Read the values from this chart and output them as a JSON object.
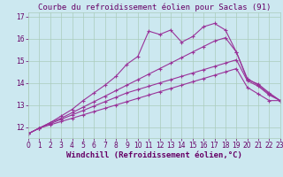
{
  "title": "Courbe du refroidissement éolien pour Saclas (91)",
  "xlabel": "Windchill (Refroidissement éolien,°C)",
  "bg_color": "#cce8f0",
  "grid_color": "#aaccbb",
  "line_color": "#993399",
  "xlim": [
    0,
    23
  ],
  "ylim": [
    11.5,
    17.2
  ],
  "xticks": [
    0,
    1,
    2,
    3,
    4,
    5,
    6,
    7,
    8,
    9,
    10,
    11,
    12,
    13,
    14,
    15,
    16,
    17,
    18,
    19,
    20,
    21,
    22,
    23
  ],
  "yticks": [
    12,
    13,
    14,
    15,
    16,
    17
  ],
  "line1_y": [
    11.7,
    11.95,
    12.2,
    12.5,
    12.8,
    13.2,
    13.55,
    13.9,
    14.3,
    14.85,
    15.2,
    16.35,
    16.2,
    16.4,
    15.85,
    16.1,
    16.55,
    16.7,
    16.4,
    15.4,
    14.15,
    13.95,
    13.55,
    13.2
  ],
  "line2_y": [
    11.7,
    11.95,
    12.2,
    12.4,
    12.65,
    12.9,
    13.15,
    13.4,
    13.65,
    13.9,
    14.15,
    14.4,
    14.65,
    14.9,
    15.15,
    15.4,
    15.65,
    15.9,
    16.05,
    15.4,
    14.2,
    13.9,
    13.5,
    13.2
  ],
  "line3_y": [
    11.7,
    11.95,
    12.15,
    12.35,
    12.55,
    12.75,
    12.95,
    13.15,
    13.35,
    13.55,
    13.7,
    13.85,
    14.0,
    14.15,
    14.3,
    14.45,
    14.6,
    14.75,
    14.9,
    15.05,
    14.1,
    13.85,
    13.45,
    13.2
  ],
  "line4_y": [
    11.7,
    11.95,
    12.1,
    12.25,
    12.4,
    12.55,
    12.7,
    12.85,
    13.0,
    13.15,
    13.3,
    13.45,
    13.6,
    13.75,
    13.9,
    14.05,
    14.2,
    14.35,
    14.5,
    14.65,
    13.8,
    13.5,
    13.2,
    13.2
  ],
  "title_color": "#660066",
  "xlabel_color": "#660066",
  "tick_color": "#660066",
  "tick_fontsize": 5.5,
  "title_fontsize": 6.5,
  "xlabel_fontsize": 6.5
}
